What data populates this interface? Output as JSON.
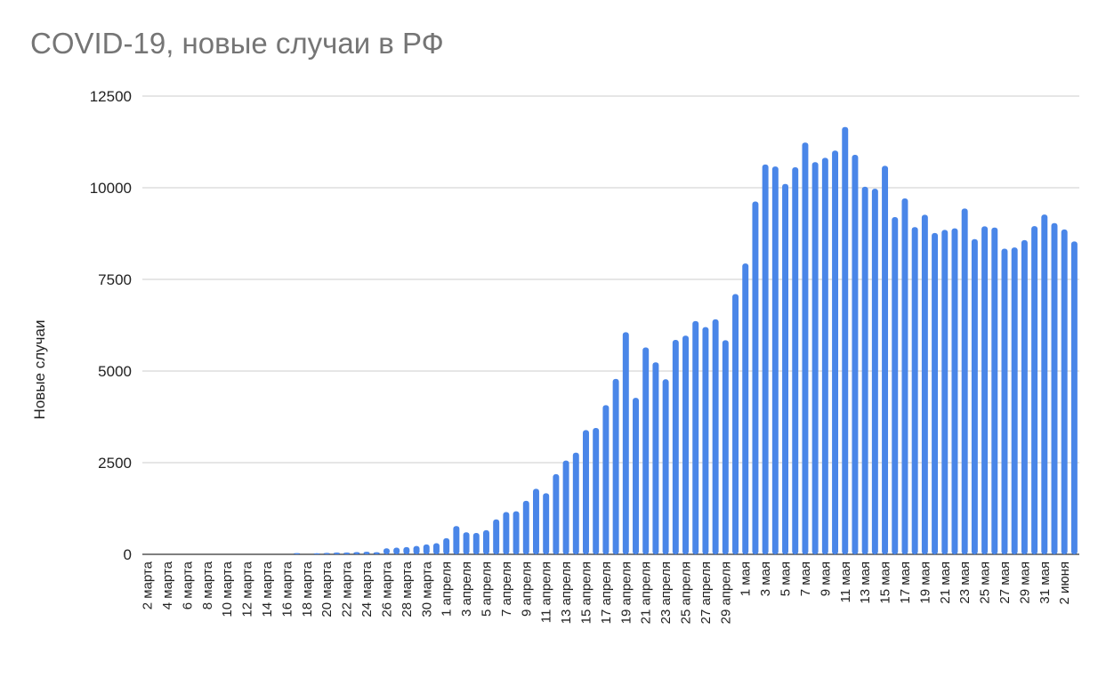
{
  "chart_data": {
    "type": "bar",
    "title": "COVID-19, новые случаи в РФ",
    "ylabel": "Новые случаи",
    "xlabel": "",
    "ylim": [
      0,
      12500
    ],
    "yticks": [
      0,
      2500,
      5000,
      7500,
      10000,
      12500
    ],
    "grid": true,
    "legend": "none",
    "bar_color": "#4a86e8",
    "categories": [
      "2 марта",
      "3 марта",
      "4 марта",
      "5 марта",
      "6 марта",
      "7 марта",
      "8 марта",
      "9 марта",
      "10 марта",
      "11 марта",
      "12 марта",
      "13 марта",
      "14 марта",
      "15 марта",
      "16 марта",
      "17 марта",
      "18 марта",
      "19 марта",
      "20 марта",
      "21 марта",
      "22 марта",
      "23 марта",
      "24 марта",
      "25 марта",
      "26 марта",
      "27 марта",
      "28 марта",
      "29 марта",
      "30 марта",
      "31 марта",
      "1 апреля",
      "2 апреля",
      "3 апреля",
      "4 апреля",
      "5 апреля",
      "6 апреля",
      "7 апреля",
      "8 апреля",
      "9 апреля",
      "10 апреля",
      "11 апреля",
      "12 апреля",
      "13 апреля",
      "14 апреля",
      "15 апреля",
      "16 апреля",
      "17 апреля",
      "18 апреля",
      "19 апреля",
      "20 апреля",
      "21 апреля",
      "22 апреля",
      "23 апреля",
      "24 апреля",
      "25 апреля",
      "26 апреля",
      "27 апреля",
      "28 апреля",
      "29 апреля",
      "30 апреля",
      "1 мая",
      "2 мая",
      "3 мая",
      "4 мая",
      "5 мая",
      "6 мая",
      "7 мая",
      "8 мая",
      "9 мая",
      "10 мая",
      "11 мая",
      "12 мая",
      "13 мая",
      "14 мая",
      "15 мая",
      "16 мая",
      "17 мая",
      "18 мая",
      "19 мая",
      "20 мая",
      "21 мая",
      "22 мая",
      "23 мая",
      "24 мая",
      "25 мая",
      "26 мая",
      "27 мая",
      "28 мая",
      "29 мая",
      "30 мая",
      "31 мая",
      "1 июня",
      "2 июня",
      "3 июня"
    ],
    "values": [
      1,
      0,
      0,
      0,
      0,
      0,
      0,
      0,
      0,
      0,
      0,
      0,
      0,
      0,
      0,
      34,
      0,
      30,
      40,
      50,
      50,
      60,
      70,
      57,
      163,
      182,
      196,
      228,
      270,
      302,
      440,
      771,
      601,
      582,
      658,
      954,
      1154,
      1175,
      1459,
      1786,
      1667,
      2186,
      2558,
      2774,
      3388,
      3448,
      4070,
      4785,
      6060,
      4268,
      5642,
      5236,
      4774,
      5849,
      5966,
      6361,
      6198,
      6411,
      5841,
      7099,
      7933,
      9623,
      10633,
      10581,
      10102,
      10559,
      11231,
      10699,
      10817,
      11012,
      11656,
      10899,
      10028,
      9974,
      10598,
      9200,
      9709,
      8926,
      9263,
      8764,
      8849,
      8894,
      9434,
      8599,
      8946,
      8915,
      8338,
      8371,
      8572,
      8952,
      9268,
      9035,
      8863,
      8536
    ],
    "tick_labels": [
      "2 марта",
      "4 марта",
      "6 марта",
      "8 марта",
      "10 марта",
      "12 марта",
      "14 марта",
      "16 марта",
      "18 марта",
      "20 марта",
      "22 марта",
      "24 марта",
      "26 марта",
      "28 марта",
      "30 марта",
      "1 апреля",
      "3 апреля",
      "5 апреля",
      "7 апреля",
      "9 апреля",
      "11 апреля",
      "13 апреля",
      "15 апреля",
      "17 апреля",
      "19 апреля",
      "21 апреля",
      "23 апреля",
      "25 апреля",
      "27 апреля",
      "29 апреля",
      "1 мая",
      "3 мая",
      "5 мая",
      "7 мая",
      "9 мая",
      "11 мая",
      "13 мая",
      "15 мая",
      "17 мая",
      "19 мая",
      "21 мая",
      "23 мая",
      "25 мая",
      "27 мая",
      "29 мая",
      "31 мая",
      "2 июня"
    ]
  }
}
